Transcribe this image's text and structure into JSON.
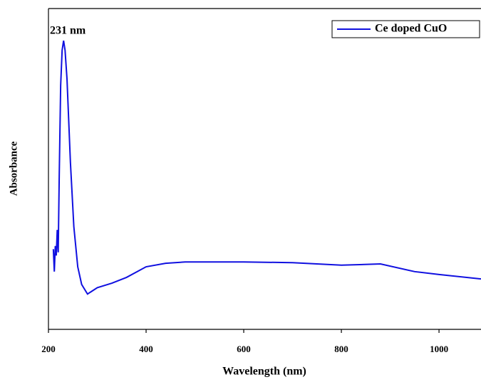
{
  "chart_data": {
    "type": "line",
    "x_label": "Wavelength (nm)",
    "y_label": "Absorbance",
    "annotations": [
      "231 nm"
    ],
    "x": [
      210,
      212,
      214,
      216,
      218,
      220,
      222,
      225,
      228,
      231,
      234,
      238,
      245,
      252,
      260,
      268,
      280,
      300,
      330,
      360,
      400,
      440,
      480,
      600,
      700,
      800,
      880,
      950,
      1000,
      1086
    ],
    "series": [
      {
        "name": "Ce doped CuO",
        "color": "#1010e0",
        "values": [
          0.25,
          0.18,
          0.26,
          0.23,
          0.31,
          0.24,
          0.47,
          0.76,
          0.87,
          0.9,
          0.87,
          0.78,
          0.52,
          0.32,
          0.195,
          0.14,
          0.11,
          0.13,
          0.144,
          0.162,
          0.195,
          0.206,
          0.21,
          0.21,
          0.208,
          0.2,
          0.204,
          0.18,
          0.171,
          0.157
        ]
      }
    ],
    "xlim": [
      200,
      1086
    ],
    "xticks": [
      200,
      400,
      600,
      800,
      1000
    ],
    "ylim": [
      0,
      1
    ],
    "legend": "top-right"
  }
}
